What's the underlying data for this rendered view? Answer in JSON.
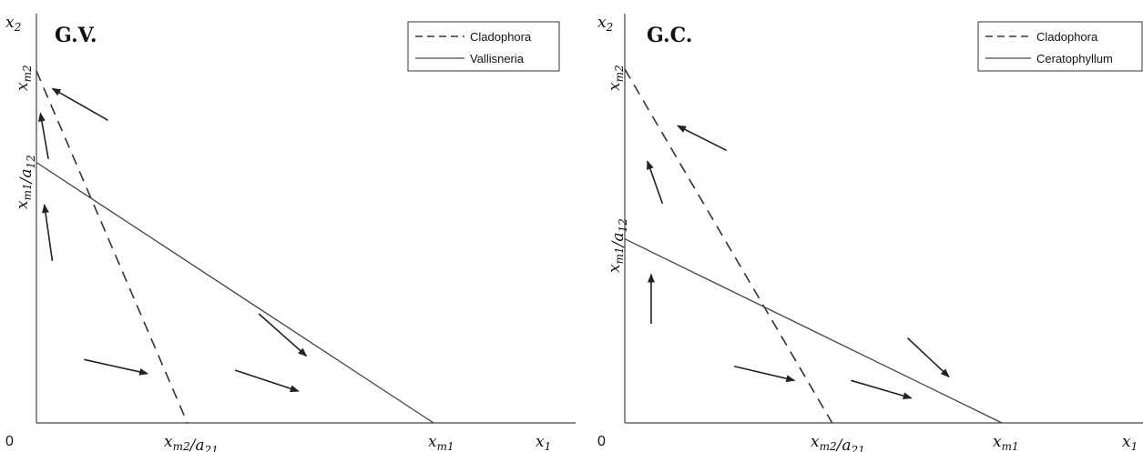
{
  "chart_data": [
    {
      "type": "line",
      "title": "G.V.",
      "xlabel": "x1",
      "ylabel": "x2",
      "origin_label": "0",
      "x_tick_labels": [
        "x_m2/a_21",
        "x_m1"
      ],
      "y_tick_labels": [
        "x_m2",
        "x_m1/a_12"
      ],
      "legend": {
        "position": "top-right",
        "entries": [
          "Cladophora",
          "Vallisneria"
        ]
      },
      "series": [
        {
          "name": "Cladophora",
          "style": "dashed",
          "x": [
            0,
            0.38
          ],
          "y": [
            1,
            0
          ]
        },
        {
          "name": "Vallisneria",
          "style": "solid",
          "x": [
            0,
            1
          ],
          "y": [
            0.74,
            0
          ]
        }
      ],
      "xlim": [
        0,
        1.26
      ],
      "ylim": [
        0,
        1.1
      ],
      "arrows": [
        {
          "from": [
            0.18,
            0.86
          ],
          "to": [
            0.04,
            0.95
          ]
        },
        {
          "from": [
            0.03,
            0.75
          ],
          "to": [
            0.01,
            0.88
          ]
        },
        {
          "from": [
            0.04,
            0.46
          ],
          "to": [
            0.02,
            0.62
          ]
        },
        {
          "from": [
            0.12,
            0.18
          ],
          "to": [
            0.28,
            0.14
          ]
        },
        {
          "from": [
            0.56,
            0.31
          ],
          "to": [
            0.68,
            0.19
          ]
        },
        {
          "from": [
            0.5,
            0.15
          ],
          "to": [
            0.66,
            0.09
          ]
        }
      ],
      "grid": false
    },
    {
      "type": "line",
      "title": "G.C.",
      "xlabel": "x1",
      "ylabel": "x2",
      "origin_label": "0",
      "x_tick_labels": [
        "x_m2/a_21",
        "x_m1"
      ],
      "y_tick_labels": [
        "x_m2",
        "x_m1/a_12"
      ],
      "legend": {
        "position": "top-right",
        "entries": [
          "Cladophora",
          "Ceratophyllum"
        ]
      },
      "series": [
        {
          "name": "Cladophora",
          "style": "dashed",
          "x": [
            0,
            0.55
          ],
          "y": [
            1,
            0
          ]
        },
        {
          "name": "Ceratophyllum",
          "style": "solid",
          "x": [
            0,
            1
          ],
          "y": [
            0.52,
            0
          ]
        }
      ],
      "xlim": [
        0,
        1.26
      ],
      "ylim": [
        0,
        1.1
      ],
      "arrows": [
        {
          "from": [
            0.27,
            0.77
          ],
          "to": [
            0.14,
            0.84
          ]
        },
        {
          "from": [
            0.1,
            0.62
          ],
          "to": [
            0.06,
            0.74
          ]
        },
        {
          "from": [
            0.07,
            0.28
          ],
          "to": [
            0.07,
            0.42
          ]
        },
        {
          "from": [
            0.29,
            0.16
          ],
          "to": [
            0.45,
            0.12
          ]
        },
        {
          "from": [
            0.75,
            0.24
          ],
          "to": [
            0.86,
            0.13
          ]
        },
        {
          "from": [
            0.6,
            0.12
          ],
          "to": [
            0.76,
            0.07
          ]
        }
      ],
      "grid": false
    }
  ]
}
